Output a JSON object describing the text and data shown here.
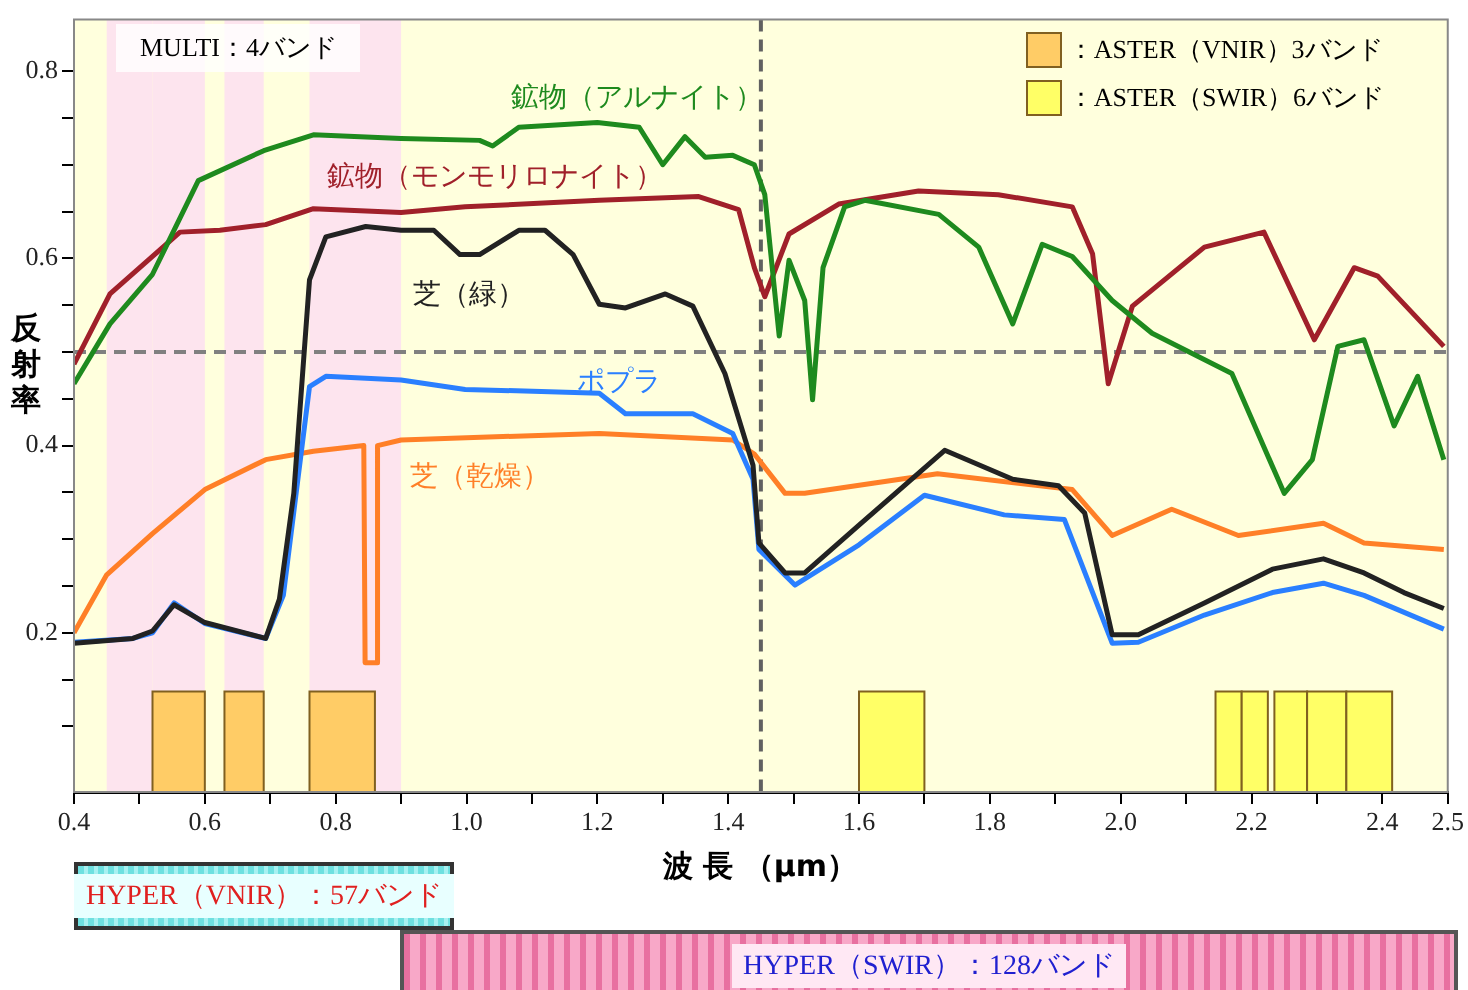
{
  "chart_data": {
    "type": "line",
    "xlabel": "波 長 （μm）",
    "ylabel": "反射率",
    "xlim": [
      0.4,
      2.5
    ],
    "ylim": [
      0.03,
      0.855
    ],
    "xticks": [
      0.4,
      {
        "value": 0.5,
        "label": null
      },
      0.6,
      {
        "value": 0.7,
        "label": null
      },
      0.8,
      {
        "value": 0.9,
        "label": null
      },
      {
        "value": 1.0,
        "label": "1.0"
      },
      {
        "value": 1.1,
        "label": null
      },
      1.2,
      {
        "value": 1.3,
        "label": null
      },
      1.4,
      {
        "value": 1.5,
        "label": null
      },
      1.6,
      {
        "value": 1.7,
        "label": null
      },
      1.8,
      {
        "value": 1.9,
        "label": null
      },
      {
        "value": 2.0,
        "label": "2.0"
      },
      {
        "value": 2.1,
        "label": null
      },
      2.2,
      {
        "value": 2.3,
        "label": null
      },
      2.4,
      2.5
    ],
    "yticks": [
      {
        "value": 0.1,
        "label": null
      },
      {
        "value": 0.15,
        "label": null
      },
      0.2,
      {
        "value": 0.25,
        "label": null
      },
      {
        "value": 0.3,
        "label": null
      },
      {
        "value": 0.35,
        "label": null
      },
      0.4,
      {
        "value": 0.45,
        "label": null
      },
      {
        "value": 0.5,
        "label": null
      },
      {
        "value": 0.55,
        "label": null
      },
      0.6,
      {
        "value": 0.65,
        "label": null
      },
      {
        "value": 0.7,
        "label": null
      },
      {
        "value": 0.75,
        "label": null
      },
      0.8
    ],
    "line_style": "solid",
    "marker": "none",
    "grid": false,
    "legend": "top right",
    "series": [
      {
        "name": "鉱物（アルナイト）",
        "color": "#1e8a1e",
        "x": [
          0.4,
          0.455,
          0.52,
          0.59,
          0.69,
          0.766,
          0.9,
          1.02,
          1.04,
          1.08,
          1.2,
          1.264,
          1.3,
          1.334,
          1.365,
          1.407,
          1.44,
          1.456,
          1.478,
          1.493,
          1.517,
          1.529,
          1.545,
          1.578,
          1.609,
          1.722,
          1.783,
          1.835,
          1.88,
          1.926,
          1.987,
          2.048,
          2.17,
          2.25,
          2.293,
          2.332,
          2.372,
          2.418,
          2.454,
          2.494
        ],
        "values": [
          0.466,
          0.53,
          0.583,
          0.683,
          0.715,
          0.732,
          0.728,
          0.726,
          0.72,
          0.74,
          0.745,
          0.74,
          0.7,
          0.73,
          0.708,
          0.71,
          0.7,
          0.668,
          0.517,
          0.598,
          0.555,
          0.449,
          0.59,
          0.655,
          0.662,
          0.647,
          0.612,
          0.53,
          0.615,
          0.602,
          0.555,
          0.52,
          0.477,
          0.349,
          0.385,
          0.506,
          0.513,
          0.421,
          0.474,
          0.385
        ]
      },
      {
        "name": "鉱物（モンモリロナイト）",
        "color": "#a0202a",
        "x": [
          0.4,
          0.455,
          0.52,
          0.562,
          0.623,
          0.693,
          0.766,
          0.9,
          0.998,
          1.203,
          1.355,
          1.416,
          1.44,
          1.456,
          1.493,
          1.569,
          1.691,
          1.813,
          1.926,
          1.957,
          1.981,
          2.018,
          2.128,
          2.219,
          2.296,
          2.357,
          2.393,
          2.494
        ],
        "values": [
          0.487,
          0.562,
          0.602,
          0.628,
          0.63,
          0.636,
          0.653,
          0.649,
          0.655,
          0.662,
          0.666,
          0.652,
          0.59,
          0.559,
          0.626,
          0.658,
          0.672,
          0.668,
          0.655,
          0.605,
          0.466,
          0.549,
          0.612,
          0.628,
          0.513,
          0.59,
          0.581,
          0.506
        ]
      },
      {
        "name": "芝（緑）",
        "color": "#222222",
        "x": [
          0.4,
          0.49,
          0.52,
          0.553,
          0.6,
          0.693,
          0.714,
          0.736,
          0.76,
          0.785,
          0.846,
          0.9,
          0.95,
          0.99,
          1.02,
          1.08,
          1.12,
          1.163,
          1.203,
          1.243,
          1.304,
          1.346,
          1.395,
          1.438,
          1.447,
          1.487,
          1.517,
          1.6,
          1.731,
          1.835,
          1.905,
          1.945,
          1.987,
          2.027,
          2.128,
          2.232,
          2.31,
          2.372,
          2.433,
          2.494
        ],
        "values": [
          0.189,
          0.194,
          0.202,
          0.23,
          0.211,
          0.194,
          0.236,
          0.349,
          0.577,
          0.623,
          0.634,
          0.63,
          0.63,
          0.604,
          0.604,
          0.63,
          0.63,
          0.604,
          0.551,
          0.547,
          0.562,
          0.549,
          0.477,
          0.379,
          0.296,
          0.264,
          0.264,
          0.315,
          0.395,
          0.364,
          0.357,
          0.328,
          0.198,
          0.198,
          0.232,
          0.268,
          0.279,
          0.264,
          0.243,
          0.226
        ]
      },
      {
        "name": "ポプラ",
        "color": "#2a7fff",
        "x": [
          0.4,
          0.49,
          0.52,
          0.553,
          0.6,
          0.693,
          0.72,
          0.76,
          0.785,
          0.9,
          0.998,
          1.203,
          1.243,
          1.346,
          1.407,
          1.438,
          1.447,
          1.502,
          1.6,
          1.7,
          1.822,
          1.914,
          1.987,
          2.027,
          2.128,
          2.232,
          2.31,
          2.372,
          2.494
        ],
        "values": [
          0.19,
          0.194,
          0.2,
          0.232,
          0.21,
          0.194,
          0.24,
          0.463,
          0.474,
          0.47,
          0.46,
          0.456,
          0.434,
          0.434,
          0.413,
          0.364,
          0.289,
          0.251,
          0.294,
          0.347,
          0.326,
          0.321,
          0.189,
          0.19,
          0.219,
          0.243,
          0.253,
          0.24,
          0.204
        ]
      },
      {
        "name": "芝（乾燥）",
        "color": "#ff7f27",
        "x": [
          0.4,
          0.45,
          0.52,
          0.6,
          0.693,
          0.766,
          0.843,
          0.845,
          0.862,
          0.864,
          0.9,
          1.203,
          1.407,
          1.44,
          1.487,
          1.517,
          1.72,
          1.926,
          1.987,
          2.078,
          2.18,
          2.31,
          2.372,
          2.494
        ],
        "values": [
          0.2,
          0.262,
          0.306,
          0.353,
          0.385,
          0.394,
          0.4,
          0.168,
          0.168,
          0.4,
          0.406,
          0.413,
          0.406,
          0.391,
          0.349,
          0.349,
          0.37,
          0.353,
          0.304,
          0.332,
          0.304,
          0.317,
          0.296,
          0.289
        ]
      }
    ],
    "ref_lines": [
      {
        "axis": "y",
        "value": 0.5,
        "color": "#808080",
        "line_style": "dashed"
      },
      {
        "axis": "x",
        "value": 1.45,
        "color": "#606060",
        "line_style": "dashed"
      }
    ],
    "bands": [
      {
        "axis": "x",
        "from": 0.45,
        "to": 0.52,
        "color": "#fde4ee"
      },
      {
        "axis": "x",
        "from": 0.52,
        "to": 0.6,
        "color": "#fde4ee"
      },
      {
        "axis": "x",
        "from": 0.63,
        "to": 0.69,
        "color": "#fde4ee"
      },
      {
        "axis": "x",
        "from": 0.76,
        "to": 0.9,
        "color": "#fde4ee"
      },
      {
        "axis": "x",
        "from": 0.52,
        "to": 0.6,
        "color": "#ffcc66",
        "label": "：ASTER（VNIR）3バンド"
      },
      {
        "axis": "x",
        "from": 0.63,
        "to": 0.69,
        "color": "#ffcc66"
      },
      {
        "axis": "x",
        "from": 0.76,
        "to": 0.86,
        "color": "#ffcc66"
      },
      {
        "axis": "x",
        "from": 1.6,
        "to": 1.7,
        "color": "#ffff66",
        "label": "：ASTER（SWIR）6バンド"
      },
      {
        "axis": "x",
        "from": 2.145,
        "to": 2.185,
        "color": "#ffff66"
      },
      {
        "axis": "x",
        "from": 2.185,
        "to": 2.225,
        "color": "#ffff66"
      },
      {
        "axis": "x",
        "from": 2.235,
        "to": 2.285,
        "color": "#ffff66"
      },
      {
        "axis": "x",
        "from": 2.285,
        "to": 2.345,
        "color": "#ffff66"
      },
      {
        "axis": "x",
        "from": 2.345,
        "to": 2.415,
        "color": "#ffff66"
      }
    ],
    "annotations": [
      "MULTI：4バンド",
      "HYPER（VNIR）：57バンド",
      "HYPER（SWIR）：128バンド"
    ]
  }
}
